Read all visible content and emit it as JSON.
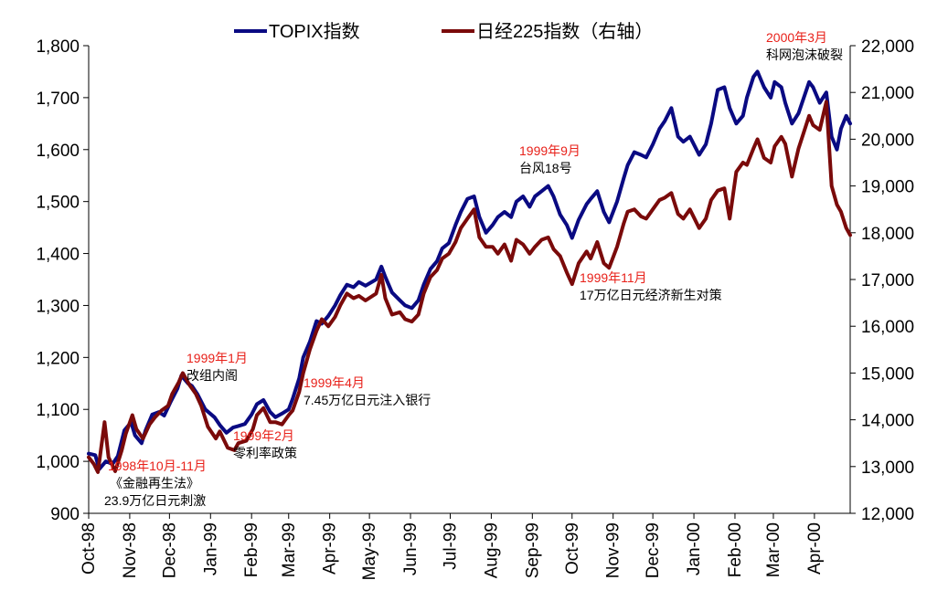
{
  "chart_data": {
    "type": "line",
    "title": "",
    "xlabel": "",
    "ylabel": "",
    "x_tick_labels": [
      "Oct-98",
      "Nov-98",
      "Dec-98",
      "Jan-99",
      "Feb-99",
      "Mar-99",
      "Apr-99",
      "May-99",
      "Jun-99",
      "Jul-99",
      "Aug-99",
      "Sep-99",
      "Oct-99",
      "Nov-99",
      "Dec-99",
      "Jan-00",
      "Feb-00",
      "Mar-00",
      "Apr-00"
    ],
    "x_range": [
      "1998-10-01",
      "2000-04-28"
    ],
    "y_left": {
      "range": [
        900,
        1800
      ],
      "ticks": [
        "900",
        "1,000",
        "1,100",
        "1,200",
        "1,300",
        "1,400",
        "1,500",
        "1,600",
        "1,700",
        "1,800"
      ]
    },
    "y_right": {
      "range": [
        12000,
        22000
      ],
      "ticks": [
        "12,000",
        "13,000",
        "14,000",
        "15,000",
        "16,000",
        "17,000",
        "18,000",
        "19,000",
        "20,000",
        "21,000",
        "22,000"
      ]
    },
    "grid": false,
    "legend_position": "top",
    "series": [
      {
        "name": "TOPIX指数",
        "axis": "left",
        "color": "#0a0a82",
        "points": [
          [
            "1998-10-01",
            1015
          ],
          [
            "1998-10-06",
            1012
          ],
          [
            "1998-10-09",
            985
          ],
          [
            "1998-10-14",
            1000
          ],
          [
            "1998-10-19",
            995
          ],
          [
            "1998-10-23",
            1010
          ],
          [
            "1998-10-28",
            1060
          ],
          [
            "1998-11-02",
            1075
          ],
          [
            "1998-11-05",
            1050
          ],
          [
            "1998-11-10",
            1035
          ],
          [
            "1998-11-13",
            1060
          ],
          [
            "1998-11-18",
            1090
          ],
          [
            "1998-11-23",
            1095
          ],
          [
            "1998-11-27",
            1088
          ],
          [
            "1998-12-02",
            1115
          ],
          [
            "1998-12-07",
            1140
          ],
          [
            "1998-12-10",
            1165
          ],
          [
            "1998-12-15",
            1150
          ],
          [
            "1998-12-18",
            1145
          ],
          [
            "1998-12-22",
            1130
          ],
          [
            "1998-12-28",
            1100
          ],
          [
            "1999-01-04",
            1085
          ],
          [
            "1999-01-08",
            1070
          ],
          [
            "1999-01-13",
            1055
          ],
          [
            "1999-01-18",
            1065
          ],
          [
            "1999-01-22",
            1068
          ],
          [
            "1999-01-27",
            1072
          ],
          [
            "1999-02-01",
            1090
          ],
          [
            "1999-02-05",
            1110
          ],
          [
            "1999-02-10",
            1118
          ],
          [
            "1999-02-15",
            1095
          ],
          [
            "1999-02-19",
            1085
          ],
          [
            "1999-02-24",
            1092
          ],
          [
            "1999-03-01",
            1100
          ],
          [
            "1999-03-04",
            1120
          ],
          [
            "1999-03-09",
            1160
          ],
          [
            "1999-03-12",
            1200
          ],
          [
            "1999-03-17",
            1230
          ],
          [
            "1999-03-22",
            1270
          ],
          [
            "1999-03-26",
            1265
          ],
          [
            "1999-03-31",
            1280
          ],
          [
            "1999-04-05",
            1300
          ],
          [
            "1999-04-09",
            1320
          ],
          [
            "1999-04-14",
            1340
          ],
          [
            "1999-04-19",
            1335
          ],
          [
            "1999-04-23",
            1345
          ],
          [
            "1999-04-28",
            1338
          ],
          [
            "1999-05-06",
            1350
          ],
          [
            "1999-05-10",
            1375
          ],
          [
            "1999-05-13",
            1355
          ],
          [
            "1999-05-18",
            1325
          ],
          [
            "1999-05-24",
            1310
          ],
          [
            "1999-05-28",
            1300
          ],
          [
            "1999-06-02",
            1295
          ],
          [
            "1999-06-07",
            1310
          ],
          [
            "1999-06-11",
            1340
          ],
          [
            "1999-06-16",
            1370
          ],
          [
            "1999-06-21",
            1385
          ],
          [
            "1999-06-25",
            1410
          ],
          [
            "1999-06-30",
            1420
          ],
          [
            "1999-07-05",
            1455
          ],
          [
            "1999-07-09",
            1480
          ],
          [
            "1999-07-14",
            1505
          ],
          [
            "1999-07-19",
            1510
          ],
          [
            "1999-07-23",
            1470
          ],
          [
            "1999-07-28",
            1440
          ],
          [
            "1999-08-02",
            1455
          ],
          [
            "1999-08-06",
            1470
          ],
          [
            "1999-08-11",
            1480
          ],
          [
            "1999-08-16",
            1470
          ],
          [
            "1999-08-20",
            1500
          ],
          [
            "1999-08-25",
            1510
          ],
          [
            "1999-08-30",
            1490
          ],
          [
            "1999-09-03",
            1510
          ],
          [
            "1999-09-08",
            1520
          ],
          [
            "1999-09-13",
            1530
          ],
          [
            "1999-09-17",
            1510
          ],
          [
            "1999-09-22",
            1475
          ],
          [
            "1999-09-27",
            1455
          ],
          [
            "1999-10-01",
            1430
          ],
          [
            "1999-10-06",
            1465
          ],
          [
            "1999-10-12",
            1495
          ],
          [
            "1999-10-15",
            1505
          ],
          [
            "1999-10-20",
            1520
          ],
          [
            "1999-10-25",
            1480
          ],
          [
            "1999-10-29",
            1460
          ],
          [
            "1999-11-04",
            1500
          ],
          [
            "1999-11-09",
            1545
          ],
          [
            "1999-11-12",
            1570
          ],
          [
            "1999-11-17",
            1595
          ],
          [
            "1999-11-22",
            1590
          ],
          [
            "1999-11-26",
            1585
          ],
          [
            "1999-12-01",
            1610
          ],
          [
            "1999-12-06",
            1640
          ],
          [
            "1999-12-10",
            1655
          ],
          [
            "1999-12-15",
            1680
          ],
          [
            "1999-12-20",
            1625
          ],
          [
            "1999-12-24",
            1615
          ],
          [
            "1999-12-29",
            1625
          ],
          [
            "2000-01-05",
            1590
          ],
          [
            "2000-01-10",
            1610
          ],
          [
            "2000-01-14",
            1650
          ],
          [
            "2000-01-19",
            1715
          ],
          [
            "2000-01-24",
            1720
          ],
          [
            "2000-01-28",
            1680
          ],
          [
            "2000-02-02",
            1650
          ],
          [
            "2000-02-07",
            1665
          ],
          [
            "2000-02-10",
            1700
          ],
          [
            "2000-02-15",
            1740
          ],
          [
            "2000-02-18",
            1750
          ],
          [
            "2000-02-23",
            1720
          ],
          [
            "2000-02-28",
            1700
          ],
          [
            "2000-03-02",
            1730
          ],
          [
            "2000-03-07",
            1720
          ],
          [
            "2000-03-10",
            1690
          ],
          [
            "2000-03-15",
            1650
          ],
          [
            "2000-03-20",
            1670
          ],
          [
            "2000-03-24",
            1700
          ],
          [
            "2000-03-28",
            1730
          ],
          [
            "2000-03-31",
            1720
          ],
          [
            "2000-04-05",
            1690
          ],
          [
            "2000-04-10",
            1710
          ],
          [
            "2000-04-14",
            1625
          ],
          [
            "2000-04-18",
            1600
          ],
          [
            "2000-04-21",
            1640
          ],
          [
            "2000-04-25",
            1665
          ],
          [
            "2000-04-28",
            1650
          ]
        ]
      },
      {
        "name": "日经225指数（右轴）",
        "axis": "right",
        "color": "#7a0a0a",
        "points": [
          [
            "1998-10-01",
            13200
          ],
          [
            "1998-10-05",
            13050
          ],
          [
            "1998-10-08",
            12880
          ],
          [
            "1998-10-13",
            13950
          ],
          [
            "1998-10-16",
            13200
          ],
          [
            "1998-10-21",
            12900
          ],
          [
            "1998-10-26",
            13350
          ],
          [
            "1998-10-29",
            13700
          ],
          [
            "1998-11-03",
            14100
          ],
          [
            "1998-11-06",
            13800
          ],
          [
            "1998-11-11",
            13600
          ],
          [
            "1998-11-16",
            13900
          ],
          [
            "1998-11-20",
            14050
          ],
          [
            "1998-11-25",
            14200
          ],
          [
            "1998-11-30",
            14300
          ],
          [
            "1998-12-03",
            14550
          ],
          [
            "1998-12-08",
            14800
          ],
          [
            "1998-12-11",
            15000
          ],
          [
            "1998-12-16",
            14750
          ],
          [
            "1998-12-21",
            14550
          ],
          [
            "1998-12-25",
            14300
          ],
          [
            "1998-12-30",
            13850
          ],
          [
            "1999-01-05",
            13600
          ],
          [
            "1999-01-08",
            13750
          ],
          [
            "1999-01-14",
            13400
          ],
          [
            "1999-01-19",
            13350
          ],
          [
            "1999-01-22",
            13500
          ],
          [
            "1999-01-28",
            13550
          ],
          [
            "1999-02-02",
            13800
          ],
          [
            "1999-02-05",
            14100
          ],
          [
            "1999-02-10",
            14250
          ],
          [
            "1999-02-15",
            13950
          ],
          [
            "1999-02-19",
            13950
          ],
          [
            "1999-02-24",
            13900
          ],
          [
            "1999-03-01",
            14100
          ],
          [
            "1999-03-04",
            14200
          ],
          [
            "1999-03-09",
            14600
          ],
          [
            "1999-03-12",
            15000
          ],
          [
            "1999-03-17",
            15500
          ],
          [
            "1999-03-22",
            15900
          ],
          [
            "1999-03-26",
            16150
          ],
          [
            "1999-03-31",
            16000
          ],
          [
            "1999-04-05",
            16200
          ],
          [
            "1999-04-09",
            16450
          ],
          [
            "1999-04-14",
            16700
          ],
          [
            "1999-04-19",
            16600
          ],
          [
            "1999-04-23",
            16650
          ],
          [
            "1999-04-28",
            16550
          ],
          [
            "1999-05-06",
            16700
          ],
          [
            "1999-05-10",
            17100
          ],
          [
            "1999-05-13",
            16600
          ],
          [
            "1999-05-18",
            16250
          ],
          [
            "1999-05-24",
            16300
          ],
          [
            "1999-05-28",
            16150
          ],
          [
            "1999-06-02",
            16100
          ],
          [
            "1999-06-07",
            16250
          ],
          [
            "1999-06-11",
            16700
          ],
          [
            "1999-06-16",
            17050
          ],
          [
            "1999-06-21",
            17200
          ],
          [
            "1999-06-25",
            17450
          ],
          [
            "1999-06-30",
            17550
          ],
          [
            "1999-07-05",
            17800
          ],
          [
            "1999-07-09",
            18100
          ],
          [
            "1999-07-14",
            18300
          ],
          [
            "1999-07-19",
            18500
          ],
          [
            "1999-07-23",
            17900
          ],
          [
            "1999-07-28",
            17700
          ],
          [
            "1999-08-02",
            17700
          ],
          [
            "1999-08-06",
            17550
          ],
          [
            "1999-08-11",
            17750
          ],
          [
            "1999-08-16",
            17400
          ],
          [
            "1999-08-20",
            17850
          ],
          [
            "1999-08-25",
            17750
          ],
          [
            "1999-08-30",
            17550
          ],
          [
            "1999-09-03",
            17700
          ],
          [
            "1999-09-08",
            17850
          ],
          [
            "1999-09-13",
            17900
          ],
          [
            "1999-09-17",
            17650
          ],
          [
            "1999-09-22",
            17500
          ],
          [
            "1999-09-27",
            17150
          ],
          [
            "1999-10-01",
            16900
          ],
          [
            "1999-10-06",
            17350
          ],
          [
            "1999-10-12",
            17600
          ],
          [
            "1999-10-15",
            17450
          ],
          [
            "1999-10-20",
            17800
          ],
          [
            "1999-10-25",
            17350
          ],
          [
            "1999-10-29",
            17250
          ],
          [
            "1999-11-04",
            17700
          ],
          [
            "1999-11-09",
            18200
          ],
          [
            "1999-11-12",
            18450
          ],
          [
            "1999-11-17",
            18500
          ],
          [
            "1999-11-22",
            18350
          ],
          [
            "1999-11-26",
            18300
          ],
          [
            "1999-12-01",
            18500
          ],
          [
            "1999-12-06",
            18700
          ],
          [
            "1999-12-10",
            18750
          ],
          [
            "1999-12-15",
            18850
          ],
          [
            "1999-12-20",
            18400
          ],
          [
            "1999-12-24",
            18300
          ],
          [
            "1999-12-29",
            18500
          ],
          [
            "2000-01-05",
            18100
          ],
          [
            "2000-01-10",
            18300
          ],
          [
            "2000-01-14",
            18700
          ],
          [
            "2000-01-19",
            18900
          ],
          [
            "2000-01-24",
            18950
          ],
          [
            "2000-01-28",
            18300
          ],
          [
            "2000-02-02",
            19300
          ],
          [
            "2000-02-07",
            19500
          ],
          [
            "2000-02-10",
            19450
          ],
          [
            "2000-02-15",
            19800
          ],
          [
            "2000-02-18",
            20000
          ],
          [
            "2000-02-23",
            19600
          ],
          [
            "2000-02-28",
            19500
          ],
          [
            "2000-03-02",
            19850
          ],
          [
            "2000-03-07",
            20050
          ],
          [
            "2000-03-10",
            19900
          ],
          [
            "2000-03-15",
            19200
          ],
          [
            "2000-03-20",
            19800
          ],
          [
            "2000-03-24",
            20150
          ],
          [
            "2000-03-28",
            20500
          ],
          [
            "2000-03-31",
            20300
          ],
          [
            "2000-04-05",
            20200
          ],
          [
            "2000-04-10",
            20800
          ],
          [
            "2000-04-14",
            19000
          ],
          [
            "2000-04-18",
            18600
          ],
          [
            "2000-04-21",
            18450
          ],
          [
            "2000-04-25",
            18100
          ],
          [
            "2000-04-28",
            17950
          ]
        ]
      }
    ],
    "annotations": [
      {
        "date": "1998年10月-11月",
        "lines": [
          "《金融再生法》",
          "23.9万亿日元刺激"
        ]
      },
      {
        "date": "1999年1月",
        "lines": [
          "改组内阁"
        ]
      },
      {
        "date": "1999年2月",
        "lines": [
          "零利率政策"
        ]
      },
      {
        "date": "1999年4月",
        "lines": [
          "7.45万亿日元注入银行"
        ]
      },
      {
        "date": "1999年9月",
        "lines": [
          "台风18号"
        ]
      },
      {
        "date": "1999年11月",
        "lines": [
          "17万亿日元经济新生对策"
        ]
      },
      {
        "date": "2000年3月",
        "lines": [
          "科网泡沫破裂"
        ]
      }
    ]
  }
}
